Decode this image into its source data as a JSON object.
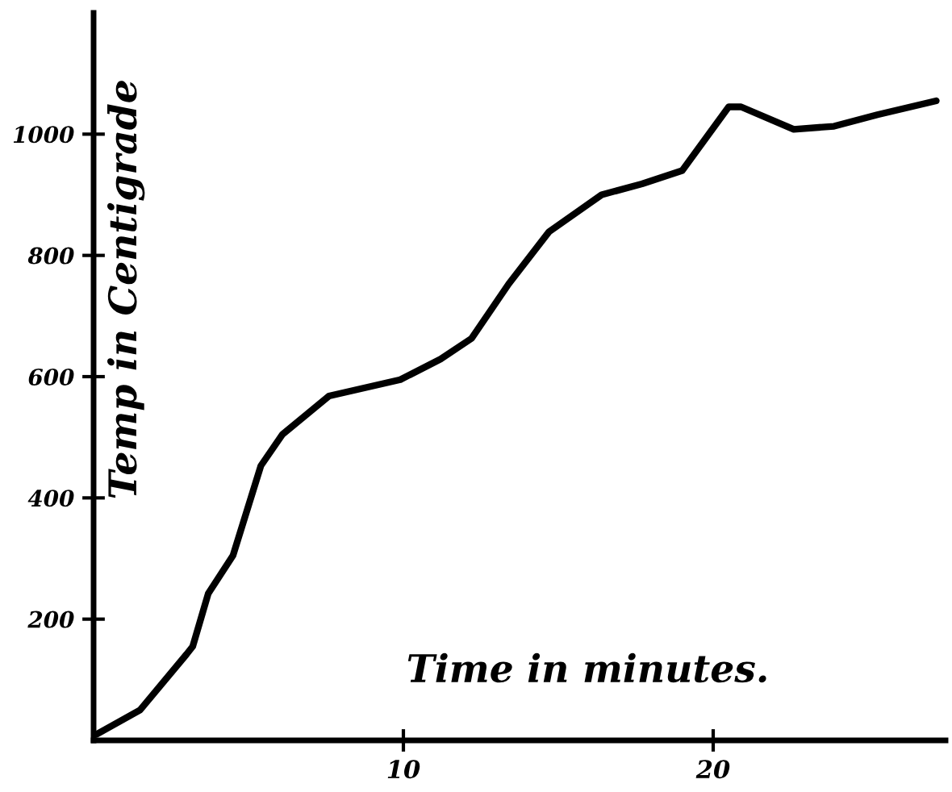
{
  "chart_data": {
    "type": "line",
    "xlabel": "Time in minutes.",
    "ylabel": "Temp in Centigrade",
    "xlim": [
      0,
      27.5
    ],
    "ylim": [
      0,
      1200
    ],
    "xticks": [
      10,
      20
    ],
    "yticks": [
      200,
      400,
      600,
      800,
      1000
    ],
    "grid": false,
    "legend": false,
    "marker": "none",
    "line_style": "solid",
    "series": [
      {
        "color": "#000000",
        "x": [
          0.1,
          1.5,
          3.0,
          3.2,
          3.7,
          4.5,
          5.4,
          6.1,
          7.6,
          9.9,
          11.2,
          12.2,
          13.4,
          14.7,
          16.4,
          17.7,
          19.0,
          20.5,
          20.9,
          22.6,
          23.9,
          25.3,
          27.2
        ],
        "values": [
          10,
          50,
          142,
          155,
          242,
          305,
          453,
          505,
          568,
          595,
          629,
          663,
          753,
          839,
          900,
          918,
          940,
          1045,
          1045,
          1008,
          1013,
          1032,
          1055
        ]
      }
    ]
  }
}
